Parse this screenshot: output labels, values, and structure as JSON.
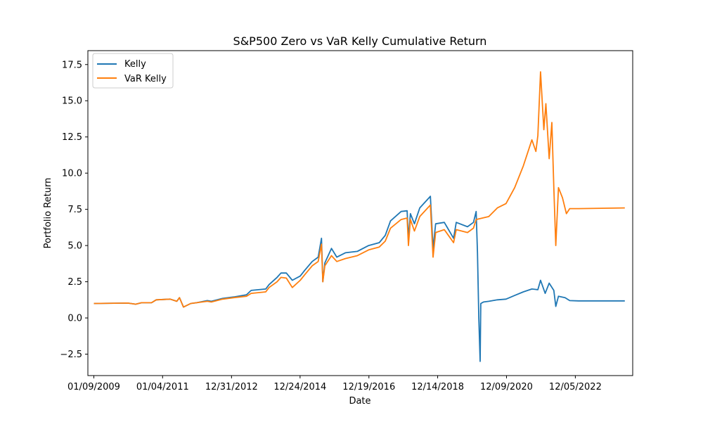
{
  "chart_data": {
    "type": "line",
    "title": "S&P500 Zero vs VaR Kelly Cumulative Return",
    "xlabel": "Date",
    "ylabel": "Portfolio Return",
    "x_range": [
      "2008-11-07",
      "2024-08-01"
    ],
    "ylim": [
      -3.98,
      18.46
    ],
    "x_ticks": [
      {
        "date": "2009-01-09",
        "label": "01/09/2009"
      },
      {
        "date": "2011-01-04",
        "label": "01/04/2011"
      },
      {
        "date": "2012-12-31",
        "label": "12/31/2012"
      },
      {
        "date": "2014-12-24",
        "label": "12/24/2014"
      },
      {
        "date": "2016-12-19",
        "label": "12/19/2016"
      },
      {
        "date": "2018-12-14",
        "label": "12/14/2018"
      },
      {
        "date": "2020-12-09",
        "label": "12/09/2020"
      },
      {
        "date": "2022-12-05",
        "label": "12/05/2022"
      }
    ],
    "y_ticks": [
      {
        "value": -2.5,
        "label": "−2.5"
      },
      {
        "value": 0.0,
        "label": "0.0"
      },
      {
        "value": 2.5,
        "label": "2.5"
      },
      {
        "value": 5.0,
        "label": "5.0"
      },
      {
        "value": 7.5,
        "label": "7.5"
      },
      {
        "value": 10.0,
        "label": "10.0"
      },
      {
        "value": 12.5,
        "label": "12.5"
      },
      {
        "value": 15.0,
        "label": "15.0"
      },
      {
        "value": 17.5,
        "label": "17.5"
      }
    ],
    "grid": false,
    "legend_position": "top-left",
    "series": [
      {
        "name": "Kelly",
        "color": "#1f77b4",
        "points": [
          [
            "2009-01-09",
            1.0
          ],
          [
            "2010-01-01",
            1.03
          ],
          [
            "2010-03-26",
            0.95
          ],
          [
            "2010-05-28",
            1.05
          ],
          [
            "2010-09-10",
            1.05
          ],
          [
            "2010-10-29",
            1.25
          ],
          [
            "2011-03-25",
            1.3
          ],
          [
            "2011-06-03",
            1.15
          ],
          [
            "2011-07-01",
            1.4
          ],
          [
            "2011-08-12",
            0.75
          ],
          [
            "2011-10-28",
            1.0
          ],
          [
            "2011-12-30",
            1.05
          ],
          [
            "2012-04-20",
            1.2
          ],
          [
            "2012-06-01",
            1.15
          ],
          [
            "2012-09-28",
            1.35
          ],
          [
            "2013-01-25",
            1.45
          ],
          [
            "2013-06-07",
            1.6
          ],
          [
            "2013-07-26",
            1.9
          ],
          [
            "2013-12-27",
            2.0
          ],
          [
            "2014-01-31",
            2.3
          ],
          [
            "2014-04-25",
            2.8
          ],
          [
            "2014-06-06",
            3.1
          ],
          [
            "2014-08-01",
            3.1
          ],
          [
            "2014-10-03",
            2.6
          ],
          [
            "2014-12-26",
            2.9
          ],
          [
            "2015-02-13",
            3.3
          ],
          [
            "2015-05-01",
            3.9
          ],
          [
            "2015-07-03",
            4.2
          ],
          [
            "2015-08-07",
            5.5
          ],
          [
            "2015-08-21",
            2.5
          ],
          [
            "2015-09-11",
            3.8
          ],
          [
            "2015-11-20",
            4.8
          ],
          [
            "2016-01-15",
            4.2
          ],
          [
            "2016-04-15",
            4.5
          ],
          [
            "2016-08-19",
            4.6
          ],
          [
            "2016-12-16",
            5.0
          ],
          [
            "2017-04-07",
            5.2
          ],
          [
            "2017-06-09",
            5.7
          ],
          [
            "2017-08-04",
            6.7
          ],
          [
            "2017-11-24",
            7.35
          ],
          [
            "2018-01-26",
            7.4
          ],
          [
            "2018-02-09",
            5.5
          ],
          [
            "2018-03-02",
            7.2
          ],
          [
            "2018-04-13",
            6.5
          ],
          [
            "2018-06-08",
            7.6
          ],
          [
            "2018-09-28",
            8.4
          ],
          [
            "2018-10-26",
            4.8
          ],
          [
            "2018-11-23",
            6.5
          ],
          [
            "2019-02-22",
            6.6
          ],
          [
            "2019-05-31",
            5.5
          ],
          [
            "2019-06-28",
            6.6
          ],
          [
            "2019-10-25",
            6.3
          ],
          [
            "2019-12-27",
            6.6
          ],
          [
            "2020-01-24",
            7.35
          ],
          [
            "2020-02-07",
            4.5
          ],
          [
            "2020-02-21",
            0.0
          ],
          [
            "2020-03-06",
            -3.0
          ],
          [
            "2020-03-13",
            1.0
          ],
          [
            "2020-04-10",
            1.1
          ],
          [
            "2020-06-05",
            1.15
          ],
          [
            "2020-09-04",
            1.25
          ],
          [
            "2020-12-04",
            1.3
          ],
          [
            "2021-03-05",
            1.55
          ],
          [
            "2021-06-04",
            1.8
          ],
          [
            "2021-09-03",
            2.0
          ],
          [
            "2021-11-05",
            1.95
          ],
          [
            "2021-12-03",
            2.6
          ],
          [
            "2022-01-21",
            1.7
          ],
          [
            "2022-03-04",
            2.4
          ],
          [
            "2022-04-22",
            1.9
          ],
          [
            "2022-05-13",
            0.8
          ],
          [
            "2022-06-10",
            1.5
          ],
          [
            "2022-08-19",
            1.4
          ],
          [
            "2022-10-07",
            1.2
          ],
          [
            "2023-01-06",
            1.18
          ],
          [
            "2024-05-10",
            1.18
          ]
        ]
      },
      {
        "name": "VaR Kelly",
        "color": "#ff7f0e",
        "points": [
          [
            "2009-01-09",
            1.0
          ],
          [
            "2010-01-01",
            1.03
          ],
          [
            "2010-03-26",
            0.95
          ],
          [
            "2010-05-28",
            1.05
          ],
          [
            "2010-09-10",
            1.05
          ],
          [
            "2010-10-29",
            1.25
          ],
          [
            "2011-03-25",
            1.3
          ],
          [
            "2011-06-03",
            1.15
          ],
          [
            "2011-07-01",
            1.4
          ],
          [
            "2011-08-12",
            0.75
          ],
          [
            "2011-10-28",
            1.0
          ],
          [
            "2011-12-30",
            1.05
          ],
          [
            "2012-04-20",
            1.15
          ],
          [
            "2012-06-01",
            1.1
          ],
          [
            "2012-09-28",
            1.3
          ],
          [
            "2013-01-25",
            1.4
          ],
          [
            "2013-06-07",
            1.5
          ],
          [
            "2013-07-26",
            1.7
          ],
          [
            "2013-12-27",
            1.8
          ],
          [
            "2014-01-31",
            2.1
          ],
          [
            "2014-04-25",
            2.5
          ],
          [
            "2014-06-06",
            2.8
          ],
          [
            "2014-08-01",
            2.75
          ],
          [
            "2014-10-03",
            2.1
          ],
          [
            "2014-12-26",
            2.6
          ],
          [
            "2015-02-13",
            3.0
          ],
          [
            "2015-05-01",
            3.6
          ],
          [
            "2015-07-03",
            3.9
          ],
          [
            "2015-08-07",
            5.1
          ],
          [
            "2015-08-21",
            2.5
          ],
          [
            "2015-09-11",
            3.6
          ],
          [
            "2015-11-20",
            4.3
          ],
          [
            "2016-01-15",
            3.9
          ],
          [
            "2016-04-15",
            4.1
          ],
          [
            "2016-08-19",
            4.3
          ],
          [
            "2016-12-16",
            4.7
          ],
          [
            "2017-04-07",
            4.9
          ],
          [
            "2017-06-09",
            5.3
          ],
          [
            "2017-08-04",
            6.2
          ],
          [
            "2017-11-24",
            6.8
          ],
          [
            "2018-01-26",
            6.9
          ],
          [
            "2018-02-09",
            5.0
          ],
          [
            "2018-03-02",
            6.8
          ],
          [
            "2018-04-13",
            6.0
          ],
          [
            "2018-06-08",
            7.0
          ],
          [
            "2018-09-28",
            7.8
          ],
          [
            "2018-10-26",
            4.2
          ],
          [
            "2018-11-23",
            5.9
          ],
          [
            "2019-02-22",
            6.1
          ],
          [
            "2019-05-31",
            5.2
          ],
          [
            "2019-06-28",
            6.1
          ],
          [
            "2019-10-25",
            5.9
          ],
          [
            "2019-12-27",
            6.2
          ],
          [
            "2020-01-24",
            6.8
          ],
          [
            "2020-06-05",
            7.0
          ],
          [
            "2020-09-04",
            7.6
          ],
          [
            "2020-12-04",
            7.9
          ],
          [
            "2021-03-05",
            9.0
          ],
          [
            "2021-06-04",
            10.5
          ],
          [
            "2021-09-03",
            12.3
          ],
          [
            "2021-10-15",
            11.5
          ],
          [
            "2021-11-05",
            12.6
          ],
          [
            "2021-12-03",
            17.0
          ],
          [
            "2022-01-07",
            13.0
          ],
          [
            "2022-01-28",
            14.8
          ],
          [
            "2022-03-04",
            11.0
          ],
          [
            "2022-04-01",
            13.5
          ],
          [
            "2022-04-22",
            9.0
          ],
          [
            "2022-05-13",
            5.0
          ],
          [
            "2022-06-10",
            9.0
          ],
          [
            "2022-07-22",
            8.3
          ],
          [
            "2022-09-02",
            7.2
          ],
          [
            "2022-10-07",
            7.55
          ],
          [
            "2023-01-06",
            7.55
          ],
          [
            "2024-05-10",
            7.6
          ]
        ]
      }
    ]
  }
}
